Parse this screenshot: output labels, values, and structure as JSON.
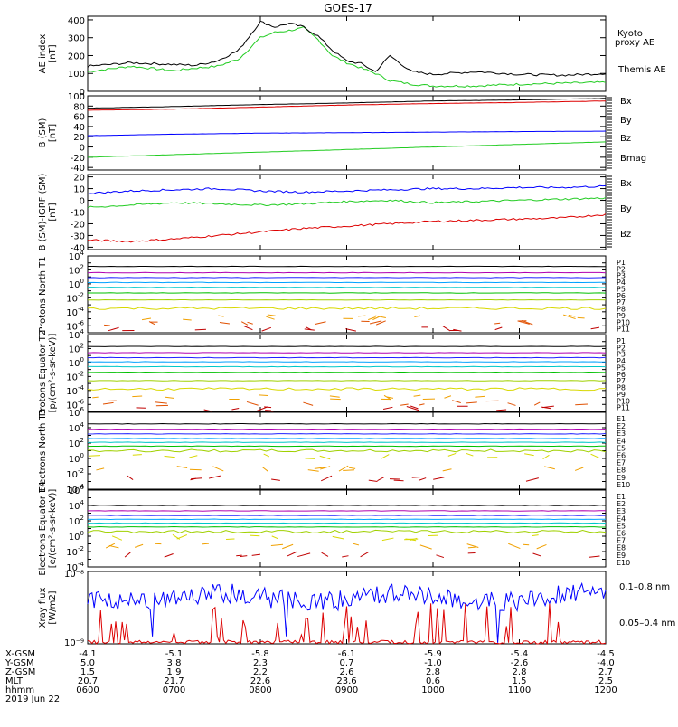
{
  "title": "GOES-17",
  "colors": {
    "black": "#000000",
    "green": "#22cc22",
    "blue": "#0000ff",
    "red": "#dd0000",
    "p_colors": [
      "#000000",
      "#b000b0",
      "#2020ff",
      "#00a0ff",
      "#00c8c8",
      "#00c000",
      "#a0d000",
      "#d8d800",
      "#f0a000",
      "#e05000",
      "#c00000"
    ],
    "e_colors": [
      "#000000",
      "#b000b0",
      "#2020ff",
      "#00a0ff",
      "#00c8c8",
      "#00c000",
      "#a0d000",
      "#d8d800",
      "#f0a000",
      "#c00000"
    ]
  },
  "time_axis": {
    "rows": [
      {
        "label": "X-GSM",
        "values": [
          "-4.1",
          "-5.1",
          "-5.8",
          "-6.1",
          "-5.9",
          "-5.4",
          "-4.5"
        ]
      },
      {
        "label": "Y-GSM",
        "values": [
          "5.0",
          "3.8",
          "2.3",
          "0.7",
          "-1.0",
          "-2.6",
          "-4.0"
        ]
      },
      {
        "label": "Z-GSM",
        "values": [
          "1.5",
          "1.9",
          "2.2",
          "2.6",
          "2.8",
          "2.8",
          "2.7"
        ]
      },
      {
        "label": "MLT",
        "values": [
          "20.7",
          "21.7",
          "22.6",
          "23.6",
          "0.6",
          "1.5",
          "2.5"
        ]
      },
      {
        "label": "hhmm",
        "values": [
          "0600",
          "0700",
          "0800",
          "0900",
          "1000",
          "1100",
          "1200"
        ]
      }
    ],
    "date": "2019 Jun 22"
  },
  "chart_data": [
    {
      "id": "ae",
      "type": "line",
      "ylabel": "AE index [nT]",
      "ylim": [
        0,
        420
      ],
      "yticks": [
        "0",
        "100",
        "200",
        "300",
        "400"
      ],
      "ytick_values": [
        0,
        100,
        200,
        300,
        400
      ],
      "x": [
        "06:00",
        "06:30",
        "07:00",
        "07:15",
        "07:30",
        "07:45",
        "08:00",
        "08:10",
        "08:20",
        "08:30",
        "08:40",
        "08:50",
        "09:00",
        "09:10",
        "09:20",
        "09:30",
        "09:45",
        "10:00",
        "10:30",
        "11:00",
        "11:30",
        "12:00"
      ],
      "series": [
        {
          "name": "Kyoto proxy AE",
          "color_key": "green",
          "values": [
            110,
            140,
            115,
            130,
            140,
            180,
            300,
            330,
            340,
            355,
            290,
            200,
            160,
            130,
            100,
            60,
            40,
            30,
            30,
            40,
            45,
            50
          ]
        },
        {
          "name": "Themis AE",
          "color_key": "black",
          "values": [
            140,
            160,
            150,
            145,
            170,
            230,
            390,
            360,
            380,
            360,
            310,
            230,
            170,
            155,
            110,
            200,
            110,
            95,
            110,
            95,
            90,
            100
          ]
        }
      ]
    },
    {
      "id": "bsm",
      "type": "line",
      "ylabel": "B (SM) [nT]",
      "ylim": [
        -45,
        100
      ],
      "yticks": [
        "100",
        "80",
        "60",
        "40",
        "20",
        "0",
        "-20",
        "-40"
      ],
      "ytick_values": [
        100,
        80,
        60,
        40,
        20,
        0,
        -20,
        -40
      ],
      "x": [
        "06:00",
        "07:00",
        "08:00",
        "09:00",
        "10:00",
        "11:00",
        "12:00"
      ],
      "series": [
        {
          "name": "Bx",
          "color_key": "blue",
          "values": [
            22,
            25,
            27,
            28,
            29,
            30,
            31
          ]
        },
        {
          "name": "By",
          "color_key": "green",
          "values": [
            -20,
            -15,
            -10,
            -5,
            0,
            5,
            10
          ]
        },
        {
          "name": "Bz",
          "color_key": "red",
          "values": [
            72,
            74,
            78,
            82,
            85,
            87,
            90
          ]
        },
        {
          "name": "Bmag",
          "color_key": "black",
          "values": [
            76,
            79,
            83,
            86,
            90,
            92,
            95
          ]
        }
      ]
    },
    {
      "id": "bigrf",
      "type": "line",
      "ylabel": "B (SM)-IGRF (SM) [nT]",
      "ylim": [
        -42,
        22
      ],
      "yticks": [
        "20",
        "10",
        "0",
        "-10",
        "-20",
        "-30",
        "-40"
      ],
      "ytick_values": [
        20,
        10,
        0,
        -10,
        -20,
        -30,
        -40
      ],
      "x": [
        "06:00",
        "06:30",
        "07:00",
        "07:30",
        "08:00",
        "08:30",
        "09:00",
        "09:30",
        "10:00",
        "10:30",
        "11:00",
        "11:30",
        "12:00"
      ],
      "series": [
        {
          "name": "Bx",
          "color_key": "blue",
          "values": [
            6,
            8,
            9,
            10,
            8,
            7,
            8,
            9,
            10,
            10,
            11,
            11,
            12
          ]
        },
        {
          "name": "By",
          "color_key": "green",
          "values": [
            -6,
            -4,
            -2,
            -3,
            -4,
            -3,
            -1,
            0,
            -2,
            -1,
            0,
            1,
            2
          ]
        },
        {
          "name": "Bz",
          "color_key": "red",
          "values": [
            -34,
            -35,
            -33,
            -30,
            -27,
            -24,
            -22,
            -20,
            -18,
            -17,
            -16,
            -15,
            -12
          ]
        }
      ]
    },
    {
      "id": "pn",
      "type": "line",
      "ylabel": "Protons North T1",
      "log": true,
      "ylim_exp": [
        -7,
        4
      ],
      "ytick_exps": [
        4,
        2,
        0,
        -2,
        -4,
        -6
      ],
      "channels": [
        "P1",
        "P2",
        "P3",
        "P4",
        "P5",
        "P6",
        "P7",
        "P8",
        "P9",
        "P10",
        "P11"
      ],
      "levels_exp": [
        2.5,
        1.6,
        0.9,
        0.2,
        -0.5,
        -1.3,
        -2.3,
        -3.5,
        -4.8,
        -5.6,
        -6.4
      ]
    },
    {
      "id": "pe",
      "type": "line",
      "ylabel": "Protons Equator T2 [p/(cm²-s-sr-keV)]",
      "log": true,
      "ylim_exp": [
        -7,
        4
      ],
      "ytick_exps": [
        4,
        2,
        0,
        -2,
        -4,
        -6
      ],
      "channels": [
        "P1",
        "P2",
        "P3",
        "P4",
        "P5",
        "P6",
        "P7",
        "P8",
        "P9",
        "P10",
        "P11"
      ],
      "levels_exp": [
        2.3,
        1.4,
        0.7,
        0.1,
        -0.6,
        -1.4,
        -2.6,
        -3.8,
        -5.0,
        -5.8,
        -6.6
      ]
    },
    {
      "id": "en",
      "type": "line",
      "ylabel": "Electrons North T3",
      "log": true,
      "ylim_exp": [
        -4,
        6
      ],
      "ytick_exps": [
        6,
        4,
        2,
        0,
        -2,
        -4
      ],
      "channels": [
        "E1",
        "E2",
        "E3",
        "E4",
        "E5",
        "E6",
        "E7",
        "E8",
        "E9",
        "E10"
      ],
      "levels_exp": [
        4.5,
        3.8,
        3.2,
        2.6,
        2.1,
        1.6,
        1.0,
        0.3,
        -1.3,
        -2.6
      ]
    },
    {
      "id": "ee",
      "type": "line",
      "ylabel": "Electrons Equator T4 [e/(cm²-s-sr-keV)]",
      "log": true,
      "ylim_exp": [
        -4,
        6
      ],
      "ytick_exps": [
        6,
        4,
        2,
        0,
        -2,
        -4
      ],
      "channels": [
        "E1",
        "E2",
        "E3",
        "E4",
        "E5",
        "E6",
        "E7",
        "E8",
        "E9",
        "E10"
      ],
      "levels_exp": [
        4.0,
        3.3,
        2.7,
        2.2,
        1.7,
        1.2,
        0.6,
        -0.2,
        -1.3,
        -2.4
      ]
    },
    {
      "id": "xray",
      "type": "line",
      "ylabel": "Xray flux [W/m2]",
      "log": true,
      "ylim_exp": [
        -9,
        -8
      ],
      "ytick_labels": [
        "10⁻⁸",
        "10⁻⁹"
      ],
      "series": [
        {
          "name": "0.1–0.8 nm",
          "color_key": "red"
        },
        {
          "name": "0.05–0.4 nm",
          "color_key": "blue"
        }
      ]
    }
  ]
}
